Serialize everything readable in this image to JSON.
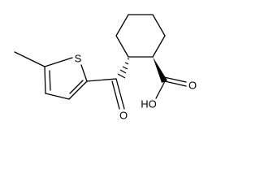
{
  "atoms": [
    {
      "label": "S"
    },
    {
      "label": "O"
    },
    {
      "label": "O"
    },
    {
      "label": "HO"
    }
  ]
}
